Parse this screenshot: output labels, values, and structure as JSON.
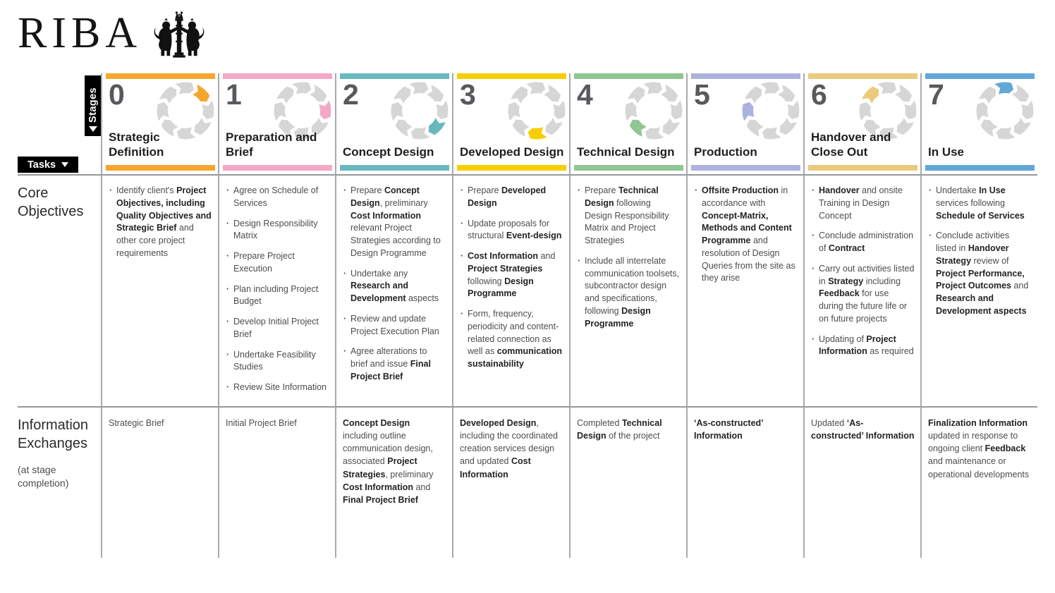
{
  "logo": {
    "text": "RIBA",
    "crest_icon": "riba-coat-of-arms"
  },
  "axis": {
    "stages_label": "Stages",
    "tasks_label": "Tasks"
  },
  "row_headers": {
    "core": "Core Objectives",
    "info_title": "Information Exchanges",
    "info_sub": "(at stage completion)"
  },
  "colors": {
    "ring_gray": "#d6d6d7",
    "number_gray": "#58595c",
    "grid_line_vertical": "#a9aaac",
    "grid_line_horizontal": "#96979a",
    "banner_black": "#000000"
  },
  "stages": [
    {
      "number": "0",
      "title": "Strategic Definition",
      "color": "#F5A72D",
      "core_objectives": [
        [
          {
            "t": "Identify client's "
          },
          {
            "t": "Project Objectives, including Quality Objectives and Strategic Brief",
            "b": 1
          },
          {
            "t": " and other core project requirements"
          }
        ]
      ],
      "information_exchange": [
        {
          "t": "Strategic Brief"
        }
      ]
    },
    {
      "number": "1",
      "title": "Preparation and Brief",
      "color": "#F3A9C6",
      "core_objectives": [
        [
          {
            "t": "Agree on Schedule of Services"
          }
        ],
        [
          {
            "t": "Design Responsibility Matrix"
          }
        ],
        [
          {
            "t": "Prepare Project Execution"
          }
        ],
        [
          {
            "t": "Plan including Project Budget"
          }
        ],
        [
          {
            "t": "Develop Initial Project Brief"
          }
        ],
        [
          {
            "t": "Undertake Feasibility Studies"
          }
        ],
        [
          {
            "t": "Review Site Information"
          }
        ]
      ],
      "information_exchange": [
        {
          "t": "Initial Project Brief"
        }
      ]
    },
    {
      "number": "2",
      "title": "Concept Design",
      "color": "#68B9BF",
      "core_objectives": [
        [
          {
            "t": "Prepare "
          },
          {
            "t": "Concept Design",
            "b": 1
          },
          {
            "t": ", preliminary "
          },
          {
            "t": "Cost Information",
            "b": 1
          },
          {
            "t": " relevant Project Strategies according to Design Programme"
          }
        ],
        [
          {
            "t": "Undertake any "
          },
          {
            "t": "Research and Development",
            "b": 1
          },
          {
            "t": " aspects"
          }
        ],
        [
          {
            "t": "Review and update Project Execution Plan"
          }
        ],
        [
          {
            "t": "Agree alterations to brief and issue "
          },
          {
            "t": "Final Project Brief",
            "b": 1
          }
        ]
      ],
      "information_exchange": [
        {
          "t": "Concept Design",
          "b": 1
        },
        {
          "t": " including outline communication design, associated "
        },
        {
          "t": "Project Strategies",
          "b": 1
        },
        {
          "t": ", preliminary "
        },
        {
          "t": "Cost Information",
          "b": 1
        },
        {
          "t": " and "
        },
        {
          "t": "Final Project Brief",
          "b": 1
        }
      ]
    },
    {
      "number": "3",
      "title": "Developed Design",
      "color": "#F7CE00",
      "core_objectives": [
        [
          {
            "t": "Prepare "
          },
          {
            "t": "Developed Design",
            "b": 1
          }
        ],
        [
          {
            "t": "Update proposals for structural "
          },
          {
            "t": "Event-design",
            "b": 1
          }
        ],
        [
          {
            "t": "Cost Information",
            "b": 1
          },
          {
            "t": " and "
          },
          {
            "t": "Project Strategies",
            "b": 1
          },
          {
            "t": " following "
          },
          {
            "t": "Design Programme",
            "b": 1
          }
        ],
        [
          {
            "t": "Form, frequency, periodicity and content-related connection as well as "
          },
          {
            "t": "communication sustainability",
            "b": 1
          }
        ]
      ],
      "information_exchange": [
        {
          "t": "Developed Design",
          "b": 1
        },
        {
          "t": ", including the coordinated creation services design and updated "
        },
        {
          "t": "Cost Information",
          "b": 1
        }
      ]
    },
    {
      "number": "4",
      "title": "Technical Design",
      "color": "#90C691",
      "core_objectives": [
        [
          {
            "t": "Prepare "
          },
          {
            "t": "Technical Design",
            "b": 1
          },
          {
            "t": " following Design Responsibility Matrix and Project Strategies"
          }
        ],
        [
          {
            "t": "Include all interrelate communication toolsets,  subcontractor design and specifications, following "
          },
          {
            "t": "Design Programme",
            "b": 1
          }
        ]
      ],
      "information_exchange": [
        {
          "t": "Completed "
        },
        {
          "t": "Technical Design",
          "b": 1
        },
        {
          "t": " of the project"
        }
      ]
    },
    {
      "number": "5",
      "title": "Production",
      "color": "#ABB2DC",
      "core_objectives": [
        [
          {
            "t": "Offsite Production",
            "b": 1
          },
          {
            "t": " in accordance with "
          },
          {
            "t": "Concept-Matrix, Methods and Content Programme",
            "b": 1
          },
          {
            "t": " and resolution of Design Queries from the site as they arise"
          }
        ]
      ],
      "information_exchange": [
        {
          "t": "‘As-constructed’ Information",
          "b": 1
        }
      ]
    },
    {
      "number": "6",
      "title": "Handover and Close Out",
      "color": "#EACB7D",
      "core_objectives": [
        [
          {
            "t": "Handover",
            "b": 1
          },
          {
            "t": " and onsite Training in Design Concept"
          }
        ],
        [
          {
            "t": "Conclude administration of "
          },
          {
            "t": "Contract",
            "b": 1
          }
        ],
        [
          {
            "t": "Carry out activities listed in "
          },
          {
            "t": "Strategy",
            "b": 1
          },
          {
            "t": " including "
          },
          {
            "t": "Feedback",
            "b": 1
          },
          {
            "t": " for use during the future life or on future projects"
          }
        ],
        [
          {
            "t": "Updating of "
          },
          {
            "t": "Project Information",
            "b": 1
          },
          {
            "t": " as required"
          }
        ]
      ],
      "information_exchange": [
        {
          "t": "Updated "
        },
        {
          "t": "‘As-constructed’ Information",
          "b": 1
        }
      ]
    },
    {
      "number": "7",
      "title": "In Use",
      "color": "#62A8D7",
      "core_objectives": [
        [
          {
            "t": "Undertake "
          },
          {
            "t": "In Use",
            "b": 1
          },
          {
            "t": " services following "
          },
          {
            "t": "Schedule of Services",
            "b": 1
          }
        ],
        [
          {
            "t": "Conclude activities listed in "
          },
          {
            "t": "Handover Strategy",
            "b": 1
          },
          {
            "t": " review of "
          },
          {
            "t": "Project Performance, Project Outcomes",
            "b": 1
          },
          {
            "t": " and "
          },
          {
            "t": "Research and Development aspects",
            "b": 1
          }
        ]
      ],
      "information_exchange": [
        {
          "t": "Finalization Information",
          "b": 1
        },
        {
          "t": " updated in response to ongoing client "
        },
        {
          "t": "Feedback",
          "b": 1
        },
        {
          "t": " and maintenance or operational developments"
        }
      ]
    }
  ]
}
